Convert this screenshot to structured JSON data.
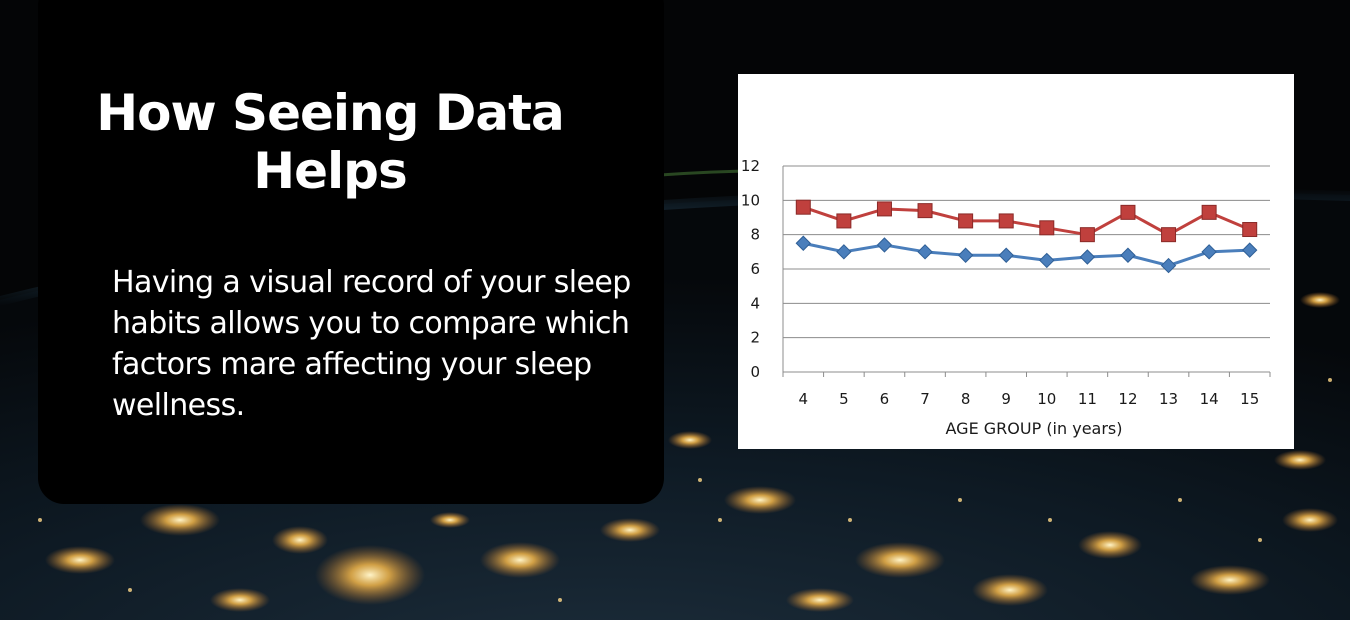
{
  "slide": {
    "title": "How Seeing Data Helps",
    "body": "Having a visual record of your sleep habits allows you to compare which factors mare affecting your sleep wellness."
  },
  "colors": {
    "series_red": "#c0403d",
    "series_blue": "#4a7ebb",
    "panel": "#000000"
  },
  "chart_data": {
    "type": "line",
    "title": "",
    "xlabel": "AGE GROUP (in years)",
    "ylabel": "",
    "categories": [
      "4",
      "5",
      "6",
      "7",
      "8",
      "9",
      "10",
      "11",
      "12",
      "13",
      "14",
      "15"
    ],
    "ylim": [
      0,
      12
    ],
    "yticks": [
      0,
      2,
      4,
      6,
      8,
      10,
      12
    ],
    "grid": true,
    "legend": "none",
    "series": [
      {
        "color": "#c0403d",
        "marker": "square",
        "values": [
          9.6,
          8.8,
          9.5,
          9.4,
          8.8,
          8.8,
          8.4,
          8.0,
          9.3,
          8.0,
          9.3,
          8.3
        ]
      },
      {
        "color": "#4a7ebb",
        "marker": "diamond",
        "values": [
          7.5,
          7.0,
          7.4,
          7.0,
          6.8,
          6.8,
          6.5,
          6.7,
          6.8,
          6.2,
          7.0,
          7.1
        ]
      }
    ]
  }
}
